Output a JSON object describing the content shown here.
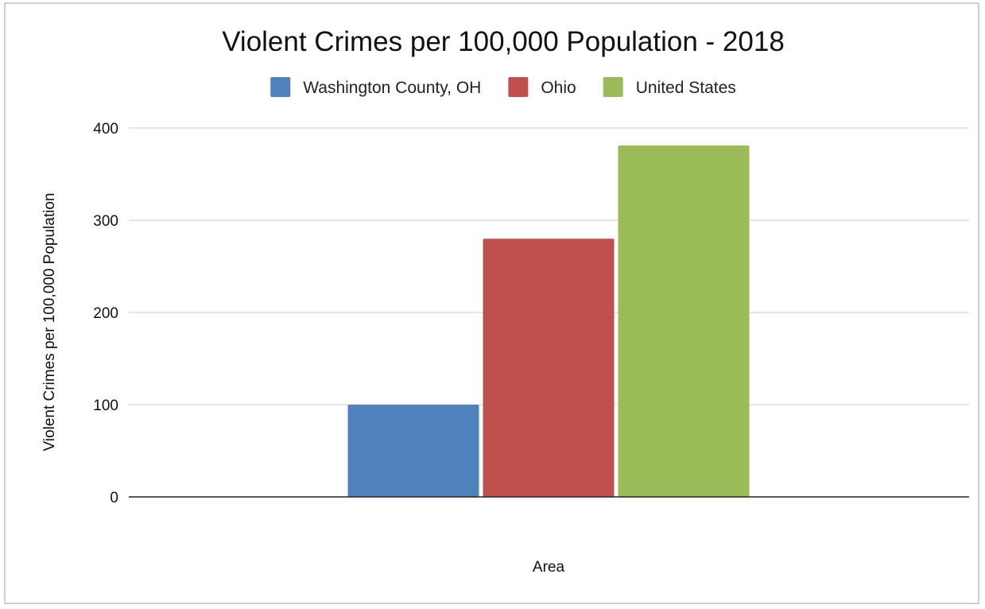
{
  "chart_data": {
    "type": "bar",
    "title": "Violent Crimes per 100,000 Population - 2018",
    "xlabel": "Area",
    "ylabel": "Violent Crimes per 100,000 Population",
    "categories": [
      ""
    ],
    "series": [
      {
        "name": "Washington County, OH",
        "values": [
          100
        ],
        "color": "#4f81bd"
      },
      {
        "name": "Ohio",
        "values": [
          280
        ],
        "color": "#c0504d"
      },
      {
        "name": "United States",
        "values": [
          381
        ],
        "color": "#9bbb59"
      }
    ],
    "ylim": [
      0,
      400
    ],
    "yticks": [
      "0",
      "100",
      "200",
      "300",
      "400"
    ],
    "grid": true,
    "legend_position": "top"
  }
}
